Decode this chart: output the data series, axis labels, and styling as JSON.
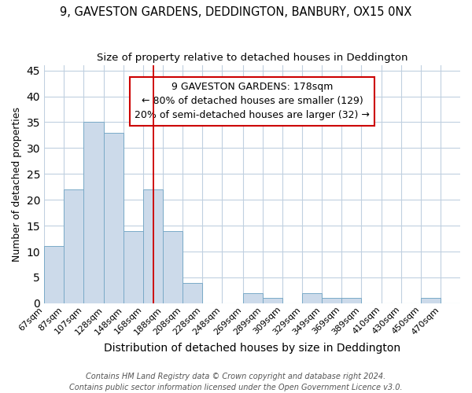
{
  "title": "9, GAVESTON GARDENS, DEDDINGTON, BANBURY, OX15 0NX",
  "subtitle": "Size of property relative to detached houses in Deddington",
  "xlabel": "Distribution of detached houses by size in Deddington",
  "ylabel": "Number of detached properties",
  "categories": [
    "67sqm",
    "87sqm",
    "107sqm",
    "128sqm",
    "148sqm",
    "168sqm",
    "188sqm",
    "208sqm",
    "228sqm",
    "248sqm",
    "269sqm",
    "289sqm",
    "309sqm",
    "329sqm",
    "349sqm",
    "369sqm",
    "389sqm",
    "410sqm",
    "430sqm",
    "450sqm",
    "470sqm"
  ],
  "bin_lefts": [
    67,
    87,
    107,
    128,
    148,
    168,
    188,
    208,
    228,
    248,
    269,
    289,
    309,
    329,
    349,
    369,
    389,
    410,
    430,
    450,
    470
  ],
  "values": [
    11,
    22,
    35,
    33,
    14,
    22,
    14,
    4,
    0,
    0,
    2,
    1,
    0,
    2,
    1,
    1,
    0,
    0,
    0,
    1,
    0
  ],
  "bar_color": "#ccdaea",
  "bar_edge_color": "#7aaac8",
  "property_sqm": 178,
  "vertical_line_color": "#cc0000",
  "annotation_line1": "9 GAVESTON GARDENS: 178sqm",
  "annotation_line2": "← 80% of detached houses are smaller (129)",
  "annotation_line3": "20% of semi-detached houses are larger (32) →",
  "annotation_box_color": "#ffffff",
  "annotation_box_edge_color": "#cc0000",
  "ylim": [
    0,
    46
  ],
  "yticks": [
    0,
    5,
    10,
    15,
    20,
    25,
    30,
    35,
    40,
    45
  ],
  "footnote": "Contains HM Land Registry data © Crown copyright and database right 2024.\nContains public sector information licensed under the Open Government Licence v3.0.",
  "background_color": "#ffffff",
  "grid_color": "#c0d0e0",
  "title_fontsize": 10.5,
  "subtitle_fontsize": 9.5,
  "xlabel_fontsize": 10,
  "ylabel_fontsize": 9,
  "tick_fontsize": 8,
  "annotation_fontsize": 9,
  "footnote_fontsize": 7
}
